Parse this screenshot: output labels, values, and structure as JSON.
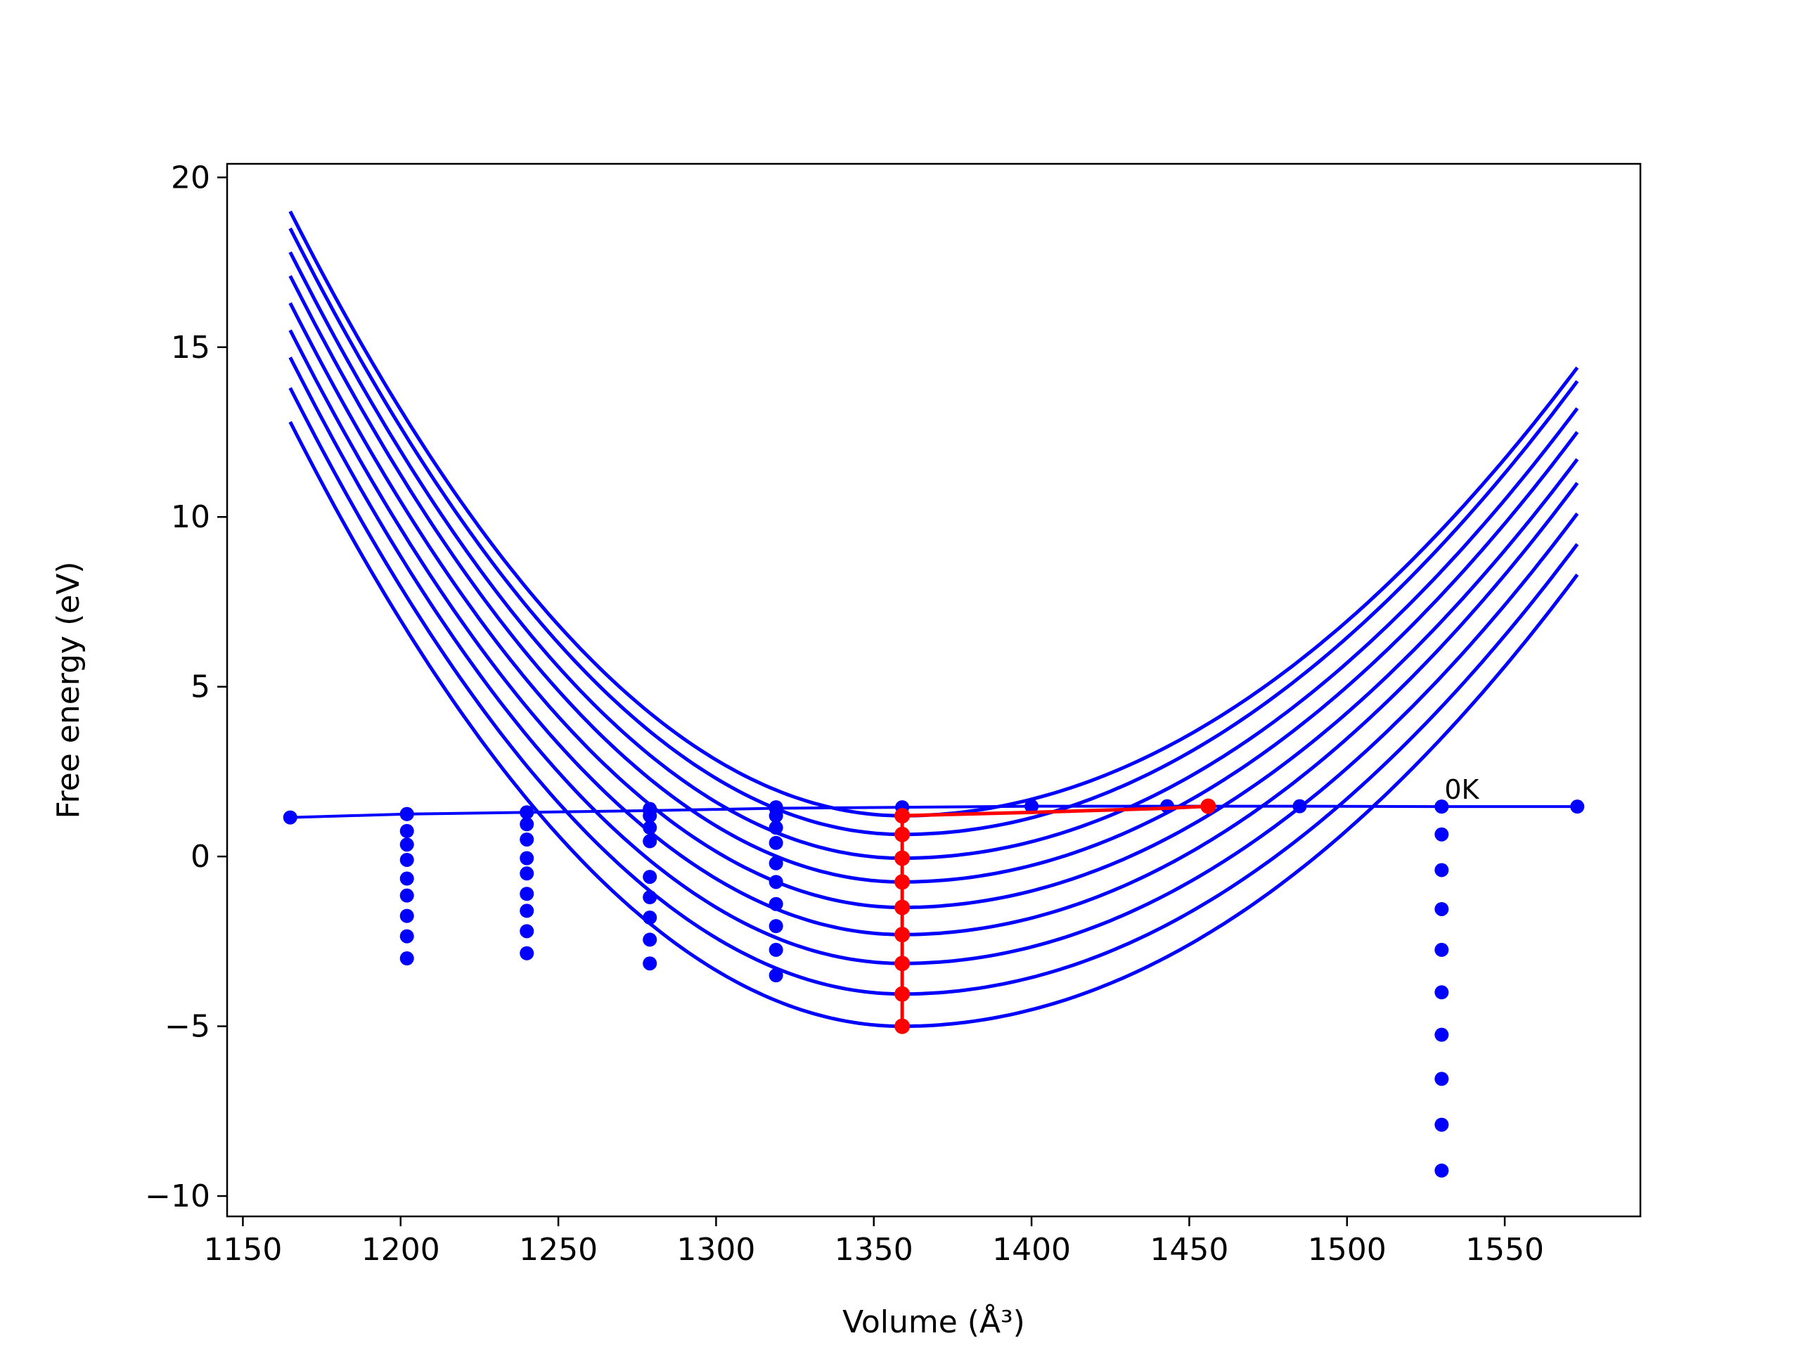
{
  "chart_data": {
    "type": "line",
    "xlabel": "Volume (Å³)",
    "ylabel": "Free energy (eV)",
    "xlim": [
      1145,
      1593
    ],
    "ylim": [
      -10.6,
      20.4
    ],
    "xticks": [
      1150,
      1200,
      1250,
      1300,
      1350,
      1400,
      1450,
      1500,
      1550
    ],
    "yticks": [
      -10,
      -5,
      0,
      5,
      10,
      15,
      20
    ],
    "xtick_labels": [
      "1150",
      "1200",
      "1250",
      "1300",
      "1350",
      "1400",
      "1450",
      "1500",
      "1550"
    ],
    "ytick_labels": [
      "−10",
      "−5",
      "0",
      "5",
      "10",
      "15",
      "20"
    ],
    "grid": false,
    "legend": "none",
    "annotations": [
      {
        "text": "0K",
        "x": 1530,
        "y": 1.45
      }
    ],
    "colors": {
      "curves": "#0000ff",
      "highlight": "#ff0000"
    },
    "curves": {
      "x_range": [
        1165,
        1573
      ],
      "minimum_volume": 1359,
      "minima": [
        1.2,
        0.65,
        -0.05,
        -0.75,
        -1.5,
        -2.3,
        -3.15,
        -4.05,
        -5.0
      ],
      "left_end_values": [
        19.0,
        18.5,
        17.8,
        17.1,
        16.3,
        15.5,
        14.7,
        13.8,
        12.8
      ],
      "right_end_values": [
        14.4,
        14.0,
        13.2,
        12.5,
        11.7,
        11.0,
        10.1,
        9.2,
        8.3
      ]
    },
    "zero_kelvin_line": {
      "x": [
        1165,
        1202,
        1240,
        1279,
        1319,
        1359,
        1400,
        1443,
        1485,
        1530,
        1573
      ],
      "y": [
        1.15,
        1.25,
        1.3,
        1.35,
        1.42,
        1.45,
        1.48,
        1.48,
        1.48,
        1.47,
        1.47
      ]
    },
    "vertical_dot_series": [
      {
        "x": 1202,
        "y": [
          1.25,
          0.75,
          0.35,
          -0.1,
          -0.65,
          -1.15,
          -1.75,
          -2.35,
          -3.0
        ]
      },
      {
        "x": 1240,
        "y": [
          1.3,
          0.95,
          0.5,
          -0.05,
          -0.5,
          -1.1,
          -1.6,
          -2.2,
          -2.85
        ]
      },
      {
        "x": 1279,
        "y": [
          1.4,
          1.2,
          0.85,
          0.45,
          -0.6,
          -1.2,
          -1.8,
          -2.45,
          -3.15
        ]
      },
      {
        "x": 1319,
        "y": [
          1.45,
          1.2,
          0.85,
          0.4,
          -0.2,
          -0.75,
          -1.4,
          -2.05,
          -2.75,
          -3.5
        ]
      },
      {
        "x": 1530,
        "y": [
          1.47,
          0.65,
          -0.4,
          -1.55,
          -2.75,
          -4.0,
          -5.25,
          -6.55,
          -7.9,
          -9.25
        ]
      }
    ],
    "highlight_series": {
      "vertical": {
        "x": 1359,
        "y": [
          1.2,
          0.65,
          -0.05,
          -0.75,
          -1.5,
          -2.3,
          -3.15,
          -4.05,
          -5.0
        ]
      },
      "path": {
        "x": [
          1359,
          1400,
          1443,
          1456
        ],
        "y": [
          1.2,
          1.3,
          1.42,
          1.48
        ]
      }
    }
  }
}
